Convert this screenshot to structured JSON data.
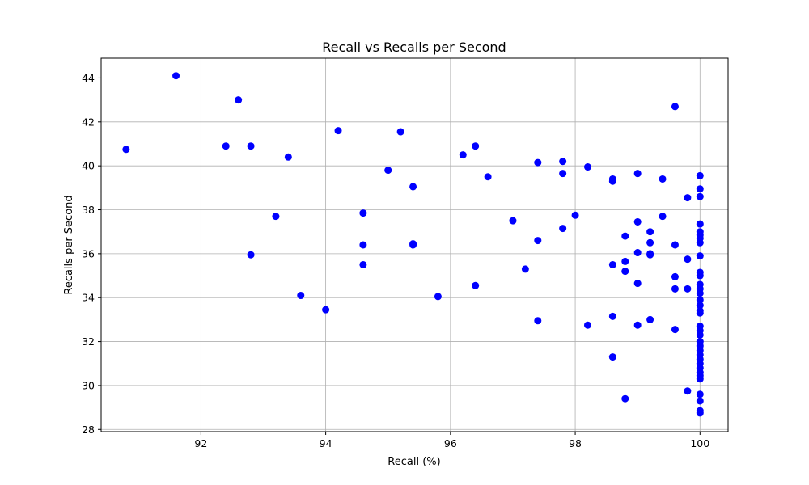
{
  "chart_data": {
    "type": "scatter",
    "title": "Recall vs Recalls per Second",
    "xlabel": "Recall (%)",
    "ylabel": "Recalls per Second",
    "xlim": [
      90.4,
      100.45
    ],
    "ylim": [
      27.9,
      44.9
    ],
    "xticks": [
      92,
      94,
      96,
      98,
      100
    ],
    "yticks": [
      28,
      30,
      32,
      34,
      36,
      38,
      40,
      42,
      44
    ],
    "grid": true,
    "marker_color": "#0000ff",
    "series": [
      {
        "points": [
          [
            90.8,
            40.75
          ],
          [
            91.6,
            44.1
          ],
          [
            92.4,
            40.9
          ],
          [
            92.6,
            43.0
          ],
          [
            92.8,
            40.9
          ],
          [
            92.8,
            35.95
          ],
          [
            93.2,
            37.7
          ],
          [
            93.4,
            40.4
          ],
          [
            93.6,
            34.1
          ],
          [
            94.0,
            33.45
          ],
          [
            94.2,
            41.6
          ],
          [
            94.6,
            37.85
          ],
          [
            94.6,
            36.4
          ],
          [
            94.6,
            35.5
          ],
          [
            95.0,
            39.8
          ],
          [
            95.2,
            41.55
          ],
          [
            95.4,
            39.05
          ],
          [
            95.4,
            36.45
          ],
          [
            95.4,
            36.4
          ],
          [
            95.8,
            34.05
          ],
          [
            96.2,
            40.5
          ],
          [
            96.4,
            40.9
          ],
          [
            96.4,
            34.55
          ],
          [
            96.6,
            39.5
          ],
          [
            97.0,
            37.5
          ],
          [
            97.2,
            35.3
          ],
          [
            97.4,
            40.15
          ],
          [
            97.4,
            36.6
          ],
          [
            97.4,
            32.95
          ],
          [
            97.8,
            40.2
          ],
          [
            97.8,
            39.65
          ],
          [
            97.8,
            37.15
          ],
          [
            98.0,
            37.75
          ],
          [
            98.2,
            39.95
          ],
          [
            98.2,
            32.75
          ],
          [
            98.6,
            39.4
          ],
          [
            98.6,
            39.3
          ],
          [
            98.6,
            35.5
          ],
          [
            98.6,
            33.15
          ],
          [
            98.6,
            31.3
          ],
          [
            98.8,
            36.8
          ],
          [
            98.8,
            35.65
          ],
          [
            98.8,
            35.2
          ],
          [
            98.8,
            29.4
          ],
          [
            99.0,
            39.65
          ],
          [
            99.0,
            37.45
          ],
          [
            99.0,
            36.05
          ],
          [
            99.0,
            34.65
          ],
          [
            99.0,
            32.75
          ],
          [
            99.2,
            37.0
          ],
          [
            99.2,
            36.5
          ],
          [
            99.2,
            36.0
          ],
          [
            99.2,
            35.95
          ],
          [
            99.2,
            33.0
          ],
          [
            99.4,
            39.4
          ],
          [
            99.4,
            37.7
          ],
          [
            99.6,
            42.7
          ],
          [
            99.6,
            36.4
          ],
          [
            99.6,
            34.95
          ],
          [
            99.6,
            34.4
          ],
          [
            99.6,
            32.55
          ],
          [
            99.8,
            38.55
          ],
          [
            99.8,
            35.75
          ],
          [
            99.8,
            34.4
          ],
          [
            99.8,
            29.75
          ],
          [
            100.0,
            39.55
          ],
          [
            100.0,
            38.95
          ],
          [
            100.0,
            38.6
          ],
          [
            100.0,
            37.35
          ],
          [
            100.0,
            37.0
          ],
          [
            100.0,
            36.85
          ],
          [
            100.0,
            36.7
          ],
          [
            100.0,
            36.5
          ],
          [
            100.0,
            35.9
          ],
          [
            100.0,
            35.15
          ],
          [
            100.0,
            35.0
          ],
          [
            100.0,
            34.6
          ],
          [
            100.0,
            34.4
          ],
          [
            100.0,
            34.2
          ],
          [
            100.0,
            33.9
          ],
          [
            100.0,
            33.65
          ],
          [
            100.0,
            33.4
          ],
          [
            100.0,
            33.3
          ],
          [
            100.0,
            32.7
          ],
          [
            100.0,
            32.5
          ],
          [
            100.0,
            32.3
          ],
          [
            100.0,
            32.0
          ],
          [
            100.0,
            31.8
          ],
          [
            100.0,
            31.6
          ],
          [
            100.0,
            31.4
          ],
          [
            100.0,
            31.2
          ],
          [
            100.0,
            31.0
          ],
          [
            100.0,
            30.8
          ],
          [
            100.0,
            30.6
          ],
          [
            100.0,
            30.45
          ],
          [
            100.0,
            30.3
          ],
          [
            100.0,
            29.6
          ],
          [
            100.0,
            29.3
          ],
          [
            100.0,
            28.85
          ],
          [
            100.0,
            28.75
          ]
        ]
      }
    ]
  }
}
